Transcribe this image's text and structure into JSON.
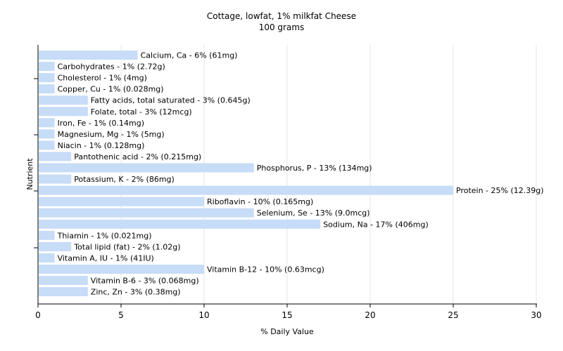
{
  "chart_data": {
    "type": "bar",
    "orientation": "horizontal",
    "title": "Cottage, lowfat, 1% milkfat Cheese",
    "subtitle": "100 grams",
    "xlabel": "% Daily Value",
    "ylabel": "Nutrient",
    "xlim": [
      0,
      30
    ],
    "xticks": [
      0,
      5,
      10,
      15,
      20,
      25,
      30
    ],
    "grid": true,
    "bar_color": "#c6dcf7",
    "categories": [
      "Calcium, Ca",
      "Carbohydrates",
      "Cholesterol",
      "Copper, Cu",
      "Fatty acids, total saturated",
      "Folate, total",
      "Iron, Fe",
      "Magnesium, Mg",
      "Niacin",
      "Pantothenic acid",
      "Phosphorus, P",
      "Potassium, K",
      "Protein",
      "Riboflavin",
      "Selenium, Se",
      "Sodium, Na",
      "Thiamin",
      "Total lipid (fat)",
      "Vitamin A, IU",
      "Vitamin B-12",
      "Vitamin B-6",
      "Zinc, Zn"
    ],
    "values": [
      6,
      1,
      1,
      1,
      3,
      3,
      1,
      1,
      1,
      2,
      13,
      2,
      25,
      10,
      13,
      17,
      1,
      2,
      1,
      10,
      3,
      3
    ],
    "labels": [
      "Calcium, Ca - 6% (61mg)",
      "Carbohydrates - 1% (2.72g)",
      "Cholesterol - 1% (4mg)",
      "Copper, Cu - 1% (0.028mg)",
      "Fatty acids, total saturated - 3% (0.645g)",
      "Folate, total - 3% (12mcg)",
      "Iron, Fe - 1% (0.14mg)",
      "Magnesium, Mg - 1% (5mg)",
      "Niacin - 1% (0.128mg)",
      "Pantothenic acid - 2% (0.215mg)",
      "Phosphorus, P - 13% (134mg)",
      "Potassium, K - 2% (86mg)",
      "Protein - 25% (12.39g)",
      "Riboflavin - 10% (0.165mg)",
      "Selenium, Se - 13% (9.0mcg)",
      "Sodium, Na - 17% (406mg)",
      "Thiamin - 1% (0.021mg)",
      "Total lipid (fat) - 2% (1.02g)",
      "Vitamin A, IU - 1% (41IU)",
      "Vitamin B-12 - 10% (0.63mcg)",
      "Vitamin B-6 - 3% (0.068mg)",
      "Zinc, Zn - 3% (0.38mg)"
    ]
  }
}
